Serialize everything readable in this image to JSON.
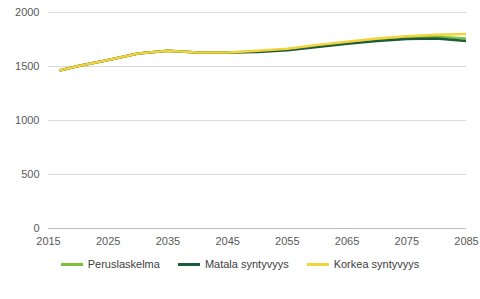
{
  "chart_data": {
    "type": "line",
    "x": [
      2017,
      2020,
      2025,
      2030,
      2035,
      2040,
      2045,
      2050,
      2055,
      2060,
      2065,
      2070,
      2075,
      2080,
      2085
    ],
    "series": [
      {
        "name": "Peruslaskelma",
        "color": "#7cbf3f",
        "values": [
          1465,
          1505,
          1560,
          1620,
          1645,
          1630,
          1630,
          1640,
          1660,
          1690,
          1720,
          1745,
          1765,
          1775,
          1760
        ]
      },
      {
        "name": "Matala syntyvyys",
        "color": "#1d5c3a",
        "values": [
          1465,
          1505,
          1560,
          1620,
          1645,
          1630,
          1630,
          1635,
          1650,
          1680,
          1710,
          1735,
          1755,
          1760,
          1735
        ]
      },
      {
        "name": "Korkea syntyvyys",
        "color": "#f2d33a",
        "values": [
          1465,
          1505,
          1560,
          1620,
          1645,
          1630,
          1630,
          1645,
          1665,
          1700,
          1730,
          1760,
          1780,
          1795,
          1800
        ]
      }
    ],
    "xlim": [
      2015,
      2085
    ],
    "xticks": [
      2015,
      2025,
      2035,
      2045,
      2055,
      2065,
      2075,
      2085
    ],
    "ylim": [
      0,
      2000
    ],
    "yticks": [
      0,
      500,
      1000,
      1500,
      2000
    ],
    "grid": true,
    "legend": "bottom"
  }
}
